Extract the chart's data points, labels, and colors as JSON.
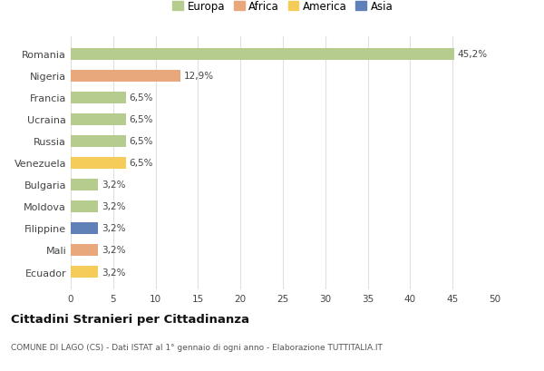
{
  "countries": [
    "Romania",
    "Nigeria",
    "Francia",
    "Ucraina",
    "Russia",
    "Venezuela",
    "Bulgaria",
    "Moldova",
    "Filippine",
    "Mali",
    "Ecuador"
  ],
  "values": [
    45.2,
    12.9,
    6.5,
    6.5,
    6.5,
    6.5,
    3.2,
    3.2,
    3.2,
    3.2,
    3.2
  ],
  "labels": [
    "45,2%",
    "12,9%",
    "6,5%",
    "6,5%",
    "6,5%",
    "6,5%",
    "3,2%",
    "3,2%",
    "3,2%",
    "3,2%",
    "3,2%"
  ],
  "bar_colors": [
    "#b5cc8e",
    "#e8a87c",
    "#b5cc8e",
    "#b5cc8e",
    "#b5cc8e",
    "#f5cc5a",
    "#b5cc8e",
    "#b5cc8e",
    "#6080b8",
    "#e8a87c",
    "#f5cc5a"
  ],
  "legend_labels": [
    "Europa",
    "Africa",
    "America",
    "Asia"
  ],
  "legend_colors": [
    "#b5cc8e",
    "#e8a87c",
    "#f5cc5a",
    "#6080b8"
  ],
  "title": "Cittadini Stranieri per Cittadinanza",
  "subtitle": "COMUNE DI LAGO (CS) - Dati ISTAT al 1° gennaio di ogni anno - Elaborazione TUTTITALIA.IT",
  "xlim": [
    0,
    50
  ],
  "xticks": [
    0,
    5,
    10,
    15,
    20,
    25,
    30,
    35,
    40,
    45,
    50
  ],
  "background_color": "#ffffff",
  "grid_color": "#e0e0e0"
}
